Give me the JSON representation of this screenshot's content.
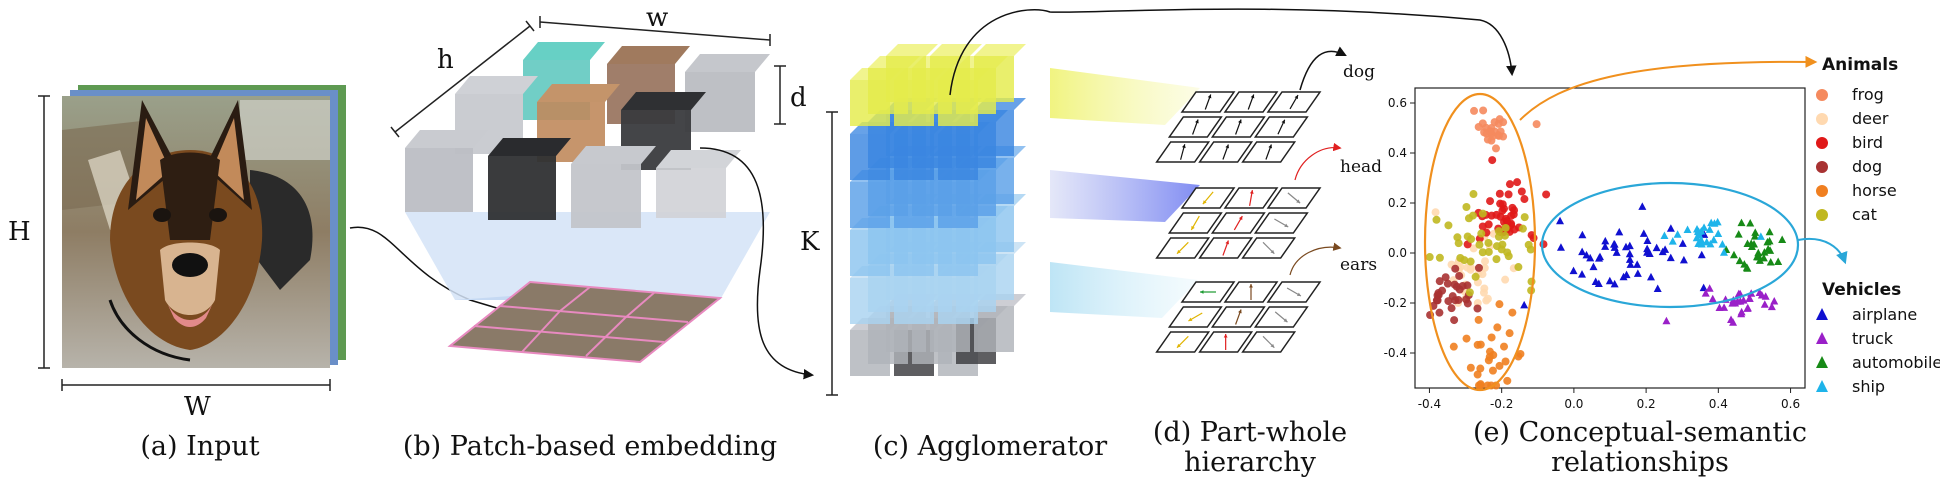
{
  "captions": {
    "a": "(a) Input",
    "b": "(b) Patch-based embedding",
    "c": "(c) Agglomerator",
    "d1": "(d) Part-whole",
    "d2": "hierarchy",
    "e1": "(e) Conceptual-semantic",
    "e2": "relationships"
  },
  "labels": {
    "H": "H",
    "W": "W",
    "h": "h",
    "w": "w",
    "d": "d",
    "K": "K",
    "dog": "dog",
    "head": "head",
    "ears": "ears"
  },
  "legend": {
    "animals_title": "Animals",
    "animals": [
      {
        "name": "frog",
        "color": "#f58a5e"
      },
      {
        "name": "deer",
        "color": "#ffd9b0"
      },
      {
        "name": "bird",
        "color": "#e01818"
      },
      {
        "name": "dog",
        "color": "#a83232"
      },
      {
        "name": "horse",
        "color": "#f07f20"
      },
      {
        "name": "cat",
        "color": "#c0b820"
      }
    ],
    "vehicles_title": "Vehicles",
    "vehicles": [
      {
        "name": "airplane",
        "color": "#1010d0"
      },
      {
        "name": "truck",
        "color": "#9a20c8"
      },
      {
        "name": "automobile",
        "color": "#178a17"
      },
      {
        "name": "ship",
        "color": "#1eb4ea"
      }
    ]
  },
  "chart_data": {
    "type": "scatter",
    "xticks": [
      "-0.4",
      "-0.2",
      "0.0",
      "0.2",
      "0.4",
      "0.6"
    ],
    "yticks": [
      "0.6",
      "0.4",
      "0.2",
      "0.0",
      "-0.2",
      "-0.4"
    ],
    "xlim": [
      -0.44,
      0.64
    ],
    "ylim": [
      -0.54,
      0.66
    ],
    "series": [
      {
        "name": "frog",
        "marker": "circle",
        "center": [
          -0.22,
          0.5
        ],
        "spread": [
          0.03,
          0.04
        ],
        "count": 25
      },
      {
        "name": "deer",
        "marker": "circle",
        "center": [
          -0.28,
          -0.07
        ],
        "spread": [
          0.05,
          0.08
        ],
        "count": 35
      },
      {
        "name": "bird",
        "marker": "circle",
        "center": [
          -0.2,
          0.14
        ],
        "spread": [
          0.05,
          0.07
        ],
        "count": 45
      },
      {
        "name": "dog",
        "marker": "circle",
        "center": [
          -0.34,
          -0.17
        ],
        "spread": [
          0.04,
          0.06
        ],
        "count": 30
      },
      {
        "name": "horse",
        "marker": "circle",
        "center": [
          -0.22,
          -0.42
        ],
        "spread": [
          0.05,
          0.12
        ],
        "count": 30
      },
      {
        "name": "cat",
        "marker": "circle",
        "center": [
          -0.24,
          0.04
        ],
        "spread": [
          0.07,
          0.08
        ],
        "count": 40
      },
      {
        "name": "airplane",
        "marker": "triangle",
        "center": [
          0.16,
          0.0
        ],
        "spread": [
          0.11,
          0.06
        ],
        "count": 50
      },
      {
        "name": "truck",
        "marker": "triangle",
        "center": [
          0.47,
          -0.2
        ],
        "spread": [
          0.05,
          0.03
        ],
        "count": 30
      },
      {
        "name": "automobile",
        "marker": "triangle",
        "center": [
          0.5,
          0.02
        ],
        "spread": [
          0.04,
          0.05
        ],
        "count": 30
      },
      {
        "name": "ship",
        "marker": "triangle",
        "center": [
          0.36,
          0.07
        ],
        "spread": [
          0.05,
          0.03
        ],
        "count": 25
      }
    ]
  }
}
